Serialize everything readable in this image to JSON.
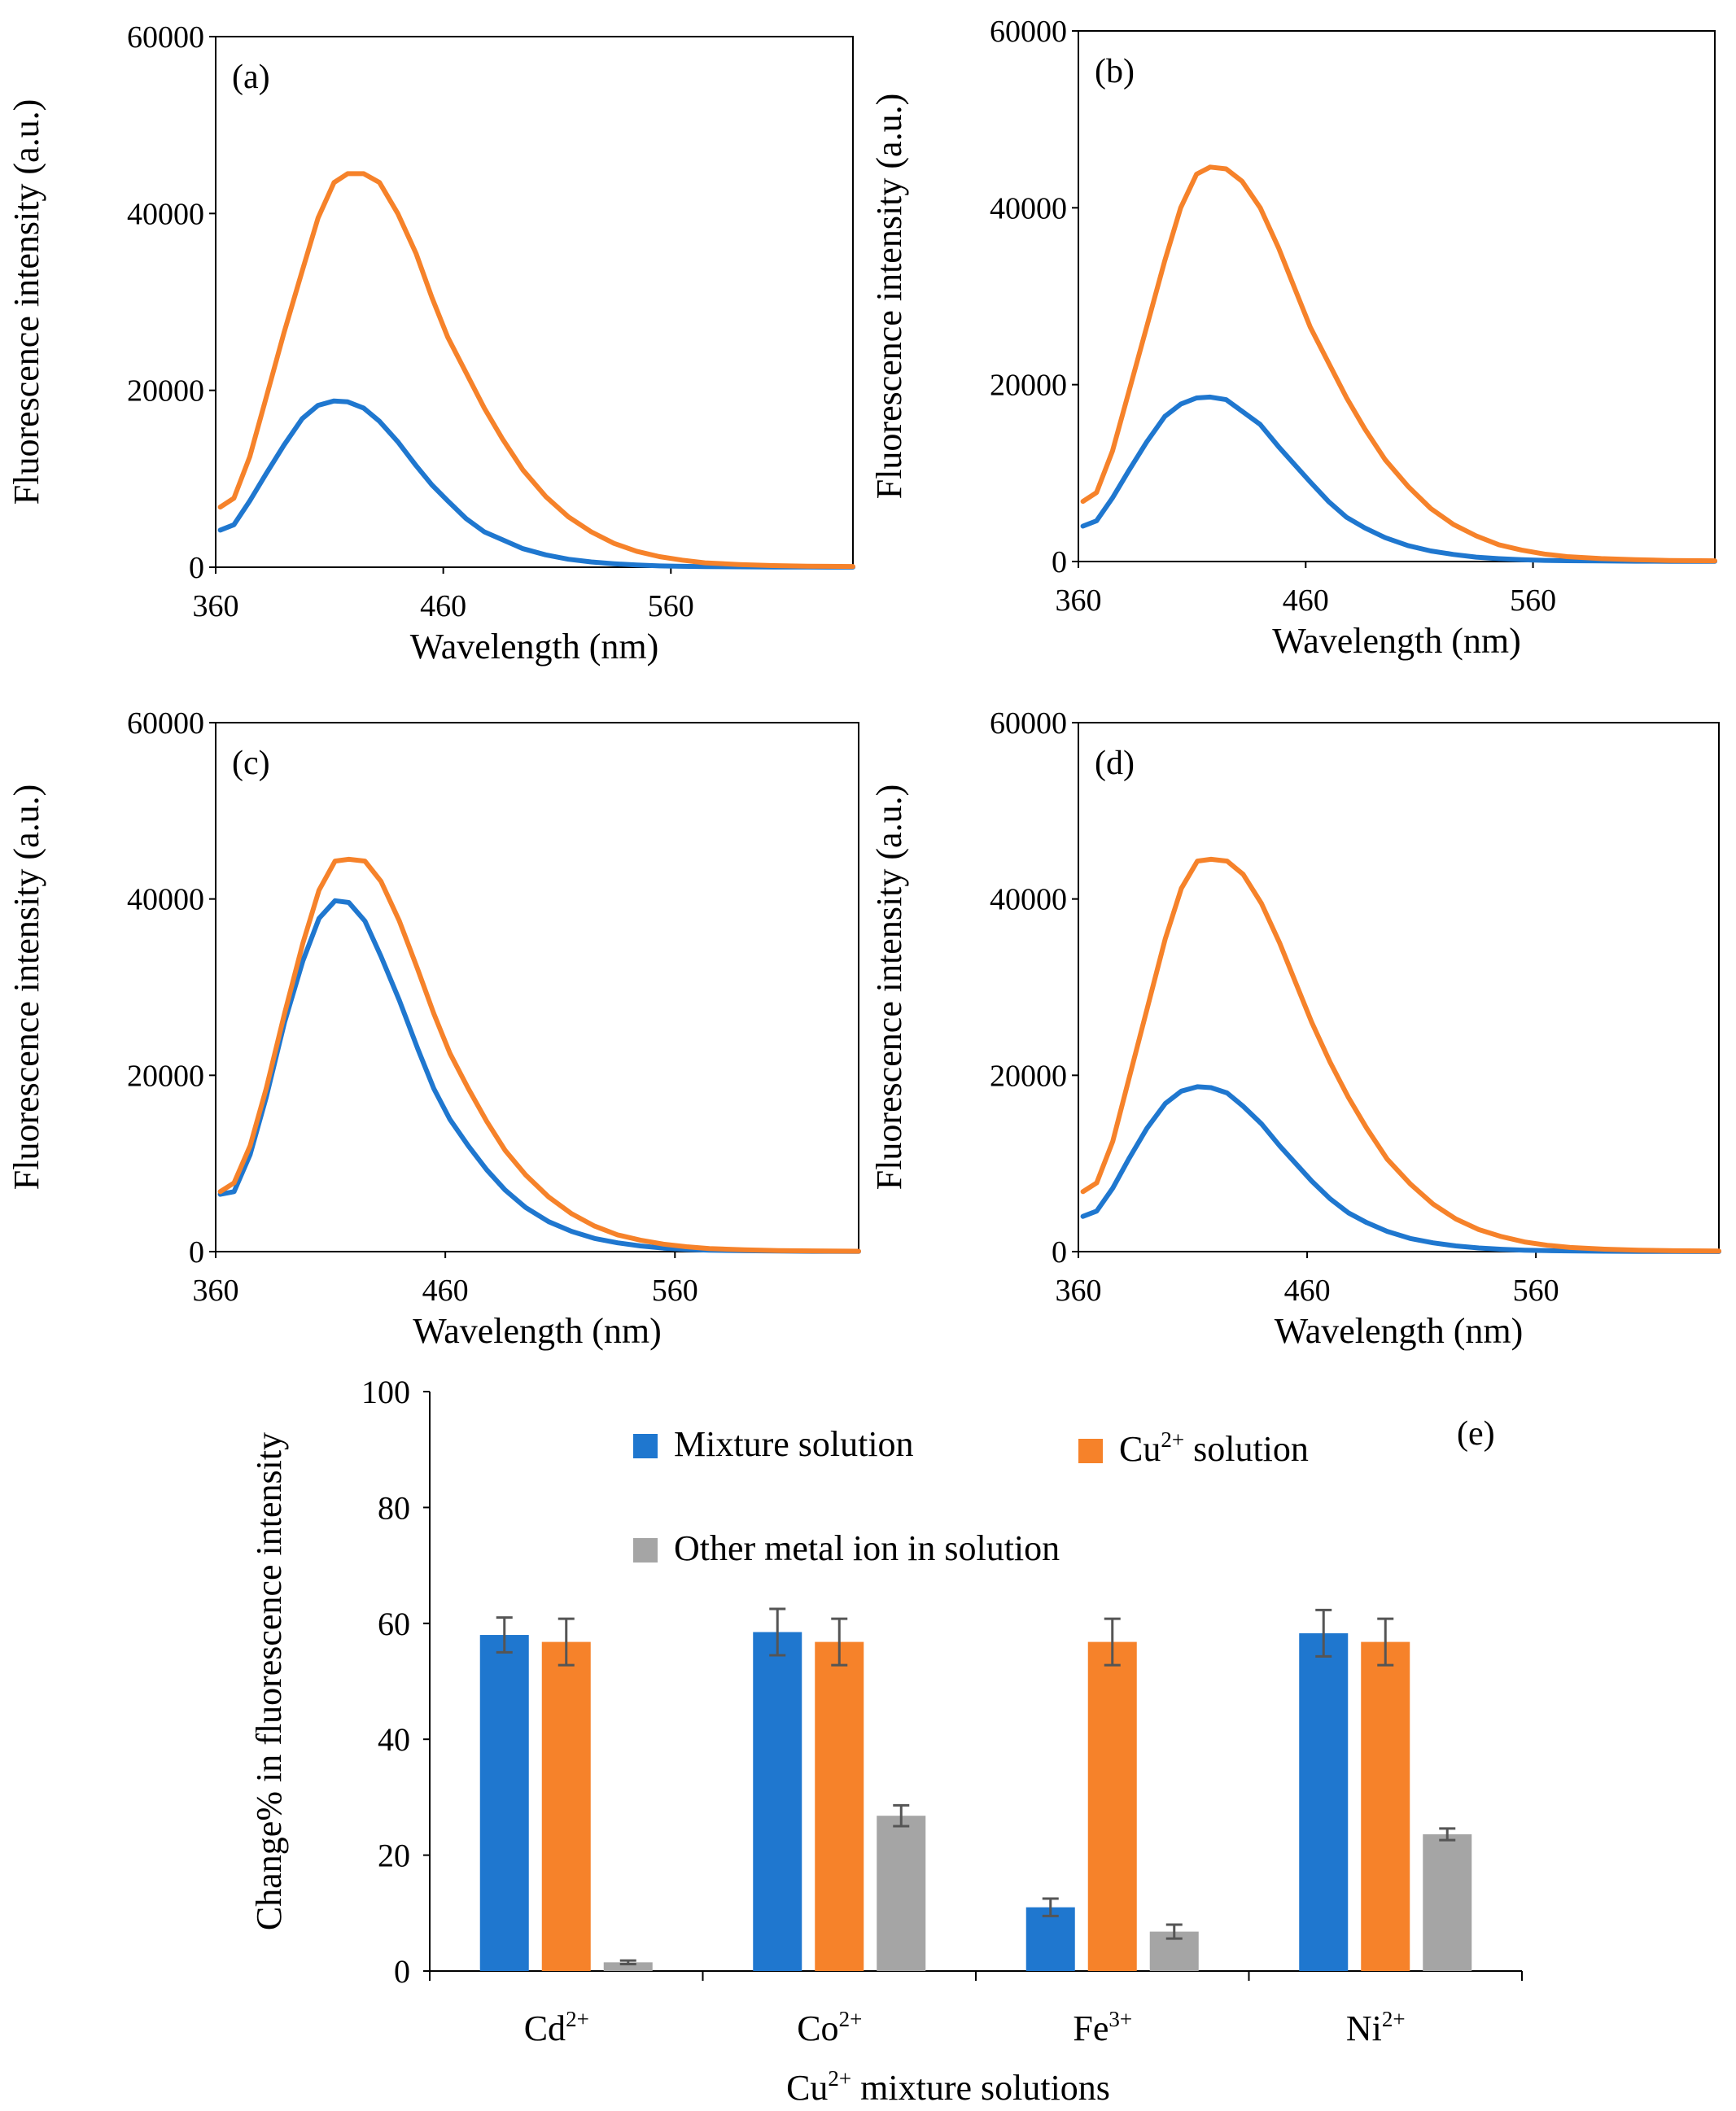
{
  "chart_data": [
    {
      "type": "line",
      "panel_label": "(a)",
      "xlabel": "Wavelength (nm)",
      "ylabel": "Fluorescence intensity (a.u.)",
      "xlim": [
        360,
        640
      ],
      "ylim": [
        0,
        60000
      ],
      "x_ticks": [
        "360",
        "460",
        "560"
      ],
      "y_ticks": [
        "0",
        "20000",
        "40000",
        "60000"
      ],
      "series": [
        {
          "name": "Mixture solution",
          "color": "#1f77cf",
          "x": [
            362,
            368,
            375,
            382,
            390,
            398,
            405,
            412,
            418,
            425,
            432,
            440,
            448,
            455,
            462,
            470,
            478,
            486,
            495,
            505,
            515,
            525,
            535,
            545,
            555,
            565,
            575,
            590,
            605,
            620,
            640
          ],
          "y": [
            4200,
            4800,
            7500,
            10500,
            13800,
            16800,
            18300,
            18800,
            18700,
            18000,
            16500,
            14200,
            11500,
            9300,
            7500,
            5500,
            4000,
            3100,
            2100,
            1400,
            900,
            600,
            400,
            250,
            150,
            100,
            70,
            50,
            30,
            20,
            10
          ]
        },
        {
          "name": "Cu2+ solution",
          "color": "#f6822a",
          "x": [
            362,
            368,
            375,
            382,
            390,
            398,
            405,
            412,
            418,
            425,
            432,
            440,
            448,
            455,
            462,
            470,
            478,
            486,
            495,
            505,
            515,
            525,
            535,
            545,
            555,
            565,
            575,
            590,
            605,
            620,
            640
          ],
          "y": [
            6800,
            7800,
            12500,
            19000,
            26500,
            33500,
            39500,
            43500,
            44500,
            44500,
            43500,
            40000,
            35500,
            30500,
            26000,
            22000,
            18000,
            14500,
            11000,
            8000,
            5700,
            4000,
            2700,
            1800,
            1200,
            800,
            500,
            300,
            180,
            110,
            80
          ]
        }
      ]
    },
    {
      "type": "line",
      "panel_label": "(b)",
      "xlabel": "Wavelength (nm)",
      "ylabel": "Fluorescence intensity (a.u.)",
      "xlim": [
        360,
        640
      ],
      "ylim": [
        0,
        60000
      ],
      "x_ticks": [
        "360",
        "460",
        "560"
      ],
      "y_ticks": [
        "0",
        "20000",
        "40000",
        "60000"
      ],
      "series": [
        {
          "name": "Mixture solution",
          "color": "#1f77cf",
          "x": [
            362,
            368,
            375,
            382,
            390,
            398,
            405,
            412,
            418,
            425,
            432,
            440,
            448,
            455,
            462,
            470,
            478,
            486,
            495,
            505,
            515,
            525,
            535,
            545,
            555,
            565,
            575,
            590,
            605,
            620,
            640
          ],
          "y": [
            4000,
            4600,
            7200,
            10200,
            13500,
            16400,
            17800,
            18500,
            18600,
            18300,
            17000,
            15500,
            13000,
            11000,
            9000,
            6800,
            5000,
            3800,
            2700,
            1800,
            1200,
            800,
            500,
            320,
            200,
            130,
            90,
            60,
            40,
            25,
            15
          ]
        },
        {
          "name": "Cu2+ solution",
          "color": "#f6822a",
          "x": [
            362,
            368,
            375,
            382,
            390,
            398,
            405,
            412,
            418,
            425,
            432,
            440,
            448,
            455,
            462,
            470,
            478,
            486,
            495,
            505,
            515,
            525,
            535,
            545,
            555,
            565,
            575,
            590,
            605,
            620,
            640
          ],
          "y": [
            6800,
            7800,
            12500,
            19000,
            26500,
            34000,
            40000,
            43800,
            44600,
            44400,
            43000,
            40000,
            35500,
            31000,
            26500,
            22500,
            18500,
            15000,
            11500,
            8500,
            6000,
            4200,
            2900,
            1900,
            1300,
            850,
            550,
            330,
            200,
            120,
            80
          ]
        }
      ]
    },
    {
      "type": "line",
      "panel_label": "(c)",
      "xlabel": "Wavelength (nm)",
      "ylabel": "Fluorescence intensity (a.u.)",
      "xlim": [
        360,
        640
      ],
      "ylim": [
        0,
        60000
      ],
      "x_ticks": [
        "360",
        "460",
        "560"
      ],
      "y_ticks": [
        "0",
        "20000",
        "40000",
        "60000"
      ],
      "series": [
        {
          "name": "Mixture solution",
          "color": "#1f77cf",
          "x": [
            362,
            368,
            375,
            382,
            390,
            398,
            405,
            412,
            418,
            425,
            432,
            440,
            448,
            455,
            462,
            470,
            478,
            486,
            495,
            505,
            515,
            525,
            535,
            545,
            555,
            565,
            575,
            590,
            605,
            620,
            640
          ],
          "y": [
            6500,
            6800,
            11000,
            17500,
            26000,
            33000,
            37800,
            39800,
            39600,
            37500,
            33500,
            28500,
            23000,
            18500,
            15000,
            12000,
            9300,
            7000,
            5000,
            3400,
            2300,
            1500,
            1000,
            650,
            400,
            250,
            160,
            100,
            60,
            40,
            25
          ]
        },
        {
          "name": "Cu2+ solution",
          "color": "#f6822a",
          "x": [
            362,
            368,
            375,
            382,
            390,
            398,
            405,
            412,
            418,
            425,
            432,
            440,
            448,
            455,
            462,
            470,
            478,
            486,
            495,
            505,
            515,
            525,
            535,
            545,
            555,
            565,
            575,
            590,
            605,
            620,
            640
          ],
          "y": [
            6800,
            7800,
            12000,
            18500,
            27000,
            35000,
            41000,
            44300,
            44500,
            44300,
            42000,
            37500,
            32000,
            27000,
            22500,
            18500,
            14800,
            11500,
            8700,
            6200,
            4300,
            2900,
            1900,
            1300,
            850,
            550,
            350,
            200,
            120,
            80,
            50
          ]
        }
      ]
    },
    {
      "type": "line",
      "panel_label": "(d)",
      "xlabel": "Wavelength (nm)",
      "ylabel": "Fluorescence intensity (a.u.)",
      "xlim": [
        360,
        640
      ],
      "ylim": [
        0,
        60000
      ],
      "x_ticks": [
        "360",
        "460",
        "560"
      ],
      "y_ticks": [
        "0",
        "20000",
        "40000",
        "60000"
      ],
      "series": [
        {
          "name": "Mixture solution",
          "color": "#1f77cf",
          "x": [
            362,
            368,
            375,
            382,
            390,
            398,
            405,
            412,
            418,
            425,
            432,
            440,
            448,
            455,
            462,
            470,
            478,
            486,
            495,
            505,
            515,
            525,
            535,
            545,
            555,
            565,
            575,
            590,
            605,
            620,
            640
          ],
          "y": [
            4000,
            4600,
            7200,
            10500,
            14000,
            16800,
            18200,
            18700,
            18600,
            18000,
            16500,
            14500,
            12000,
            10000,
            8000,
            6000,
            4400,
            3300,
            2300,
            1500,
            1000,
            650,
            420,
            270,
            170,
            110,
            80,
            50,
            30,
            20,
            10
          ]
        },
        {
          "name": "Cu2+ solution",
          "color": "#f6822a",
          "x": [
            362,
            368,
            375,
            382,
            390,
            398,
            405,
            412,
            418,
            425,
            432,
            440,
            448,
            455,
            462,
            470,
            478,
            486,
            495,
            505,
            515,
            525,
            535,
            545,
            555,
            565,
            575,
            590,
            605,
            620,
            640
          ],
          "y": [
            6800,
            7800,
            12500,
            19500,
            27500,
            35500,
            41200,
            44300,
            44500,
            44300,
            42800,
            39500,
            35000,
            30500,
            26000,
            21500,
            17500,
            14000,
            10500,
            7700,
            5400,
            3700,
            2500,
            1700,
            1100,
            720,
            470,
            280,
            170,
            100,
            70
          ]
        }
      ]
    },
    {
      "type": "bar",
      "panel_label": "(e)",
      "title": "",
      "xlabel_main": "Cu",
      "xlabel_sup": "2+",
      "xlabel_rest": " mixture solutions",
      "ylabel": "Change% in fluorescence intensity",
      "ylim": [
        0,
        100
      ],
      "y_ticks": [
        "0",
        "20",
        "40",
        "60",
        "80",
        "100"
      ],
      "categories": [
        {
          "base": "Cd",
          "sup": "2+"
        },
        {
          "base": "Co",
          "sup": "2+"
        },
        {
          "base": "Fe",
          "sup": "3+"
        },
        {
          "base": "Ni",
          "sup": "2+"
        }
      ],
      "series": [
        {
          "name": "Mixture solution",
          "label_base": "Mixture solution",
          "label_sup": "",
          "label_rest": "",
          "color": "#1f77cf",
          "values": [
            58,
            58.5,
            11,
            58.3
          ],
          "errors": [
            3,
            4,
            1.5,
            4
          ]
        },
        {
          "name": "Cu2+ solution",
          "label_base": "Cu",
          "label_sup": "2+",
          "label_rest": " solution",
          "color": "#f6822a",
          "values": [
            56.8,
            56.8,
            56.8,
            56.8
          ],
          "errors": [
            4,
            4,
            4,
            4
          ]
        },
        {
          "name": "Other metal ion in solution",
          "label_base": "Other metal ion in solution",
          "label_sup": "",
          "label_rest": "",
          "color": "#a5a5a5",
          "values": [
            1.5,
            26.8,
            6.8,
            23.6
          ],
          "errors": [
            0.3,
            1.8,
            1.2,
            1
          ]
        }
      ]
    }
  ]
}
